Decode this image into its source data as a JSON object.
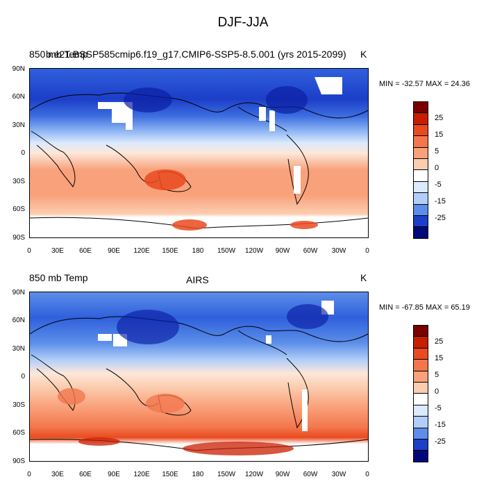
{
  "figure_title": "DJF-JJA",
  "panels": [
    {
      "left_title": "850 mb Temp",
      "center_title": "b.e21.BSSP585cmip6.f19_g17.CMIP6-SSP5-8.5.001 (yrs 2015-2099)",
      "units": "K",
      "stats": "MIN = -32.57 MAX =  24.36"
    },
    {
      "left_title": "850 mb Temp",
      "center_title": "AIRS",
      "units": "K",
      "stats": "MIN = -67.85 MAX =  65.19"
    }
  ],
  "lat_labels": [
    "90N",
    "60N",
    "30N",
    "0",
    "30S",
    "60S",
    "90S"
  ],
  "lon_labels": [
    "0",
    "30E",
    "60E",
    "90E",
    "120E",
    "150E",
    "180",
    "150W",
    "120W",
    "90W",
    "60W",
    "30W",
    "0"
  ],
  "colorbar": {
    "labels": [
      "25",
      "15",
      "5",
      "0",
      "-5",
      "-15",
      "-25"
    ],
    "colors": [
      "#7a0000",
      "#c81e00",
      "#ea4a1f",
      "#f3774d",
      "#f9a17b",
      "#fbcdb0",
      "#fde7d9",
      "#ffffff",
      "#dbeafd",
      "#b1cef8",
      "#86aff2",
      "#5c8ee9",
      "#2f60dc",
      "#1c3ec8",
      "#0b1fa4",
      "#00087a"
    ]
  },
  "colors": {
    "ocean_cold": "#2f60dc",
    "ocean_warm": "#f9a17b",
    "missing": "#ffffff"
  }
}
